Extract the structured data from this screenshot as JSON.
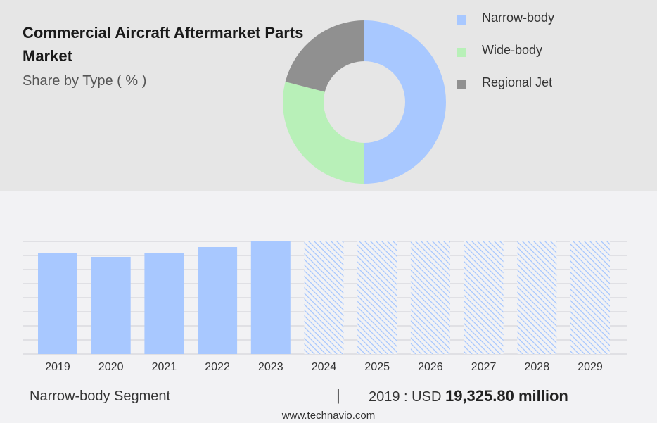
{
  "chart_data": [
    {
      "type": "pie",
      "title": "Commercial Aircraft Aftermarket Parts Market",
      "subtitle": "Share by Type ( % )",
      "legend_position": "top-right",
      "donut": true,
      "slices": [
        {
          "label": "Narrow-body",
          "value": 50,
          "color": "#a8c8ff"
        },
        {
          "label": "Wide-body",
          "value": 29,
          "color": "#b8f0b8"
        },
        {
          "label": "Regional Jet",
          "value": 21,
          "color": "#909090"
        }
      ]
    },
    {
      "type": "bar",
      "categories": [
        "2019",
        "2020",
        "2021",
        "2022",
        "2023",
        "2024",
        "2025",
        "2026",
        "2027",
        "2028",
        "2029"
      ],
      "values": [
        72,
        69,
        72,
        76,
        80,
        80,
        80,
        80,
        80,
        80,
        80
      ],
      "forecast_start_index": 5,
      "ylim": [
        0,
        80
      ],
      "grid": true,
      "bar_color": "#a8c8ff"
    }
  ],
  "footer": {
    "segment_label": "Narrow-body Segment",
    "separator": "|",
    "value_prefix": "2019 : USD",
    "value_bold": "19,325.80 million"
  },
  "website": "www.technavio.com"
}
